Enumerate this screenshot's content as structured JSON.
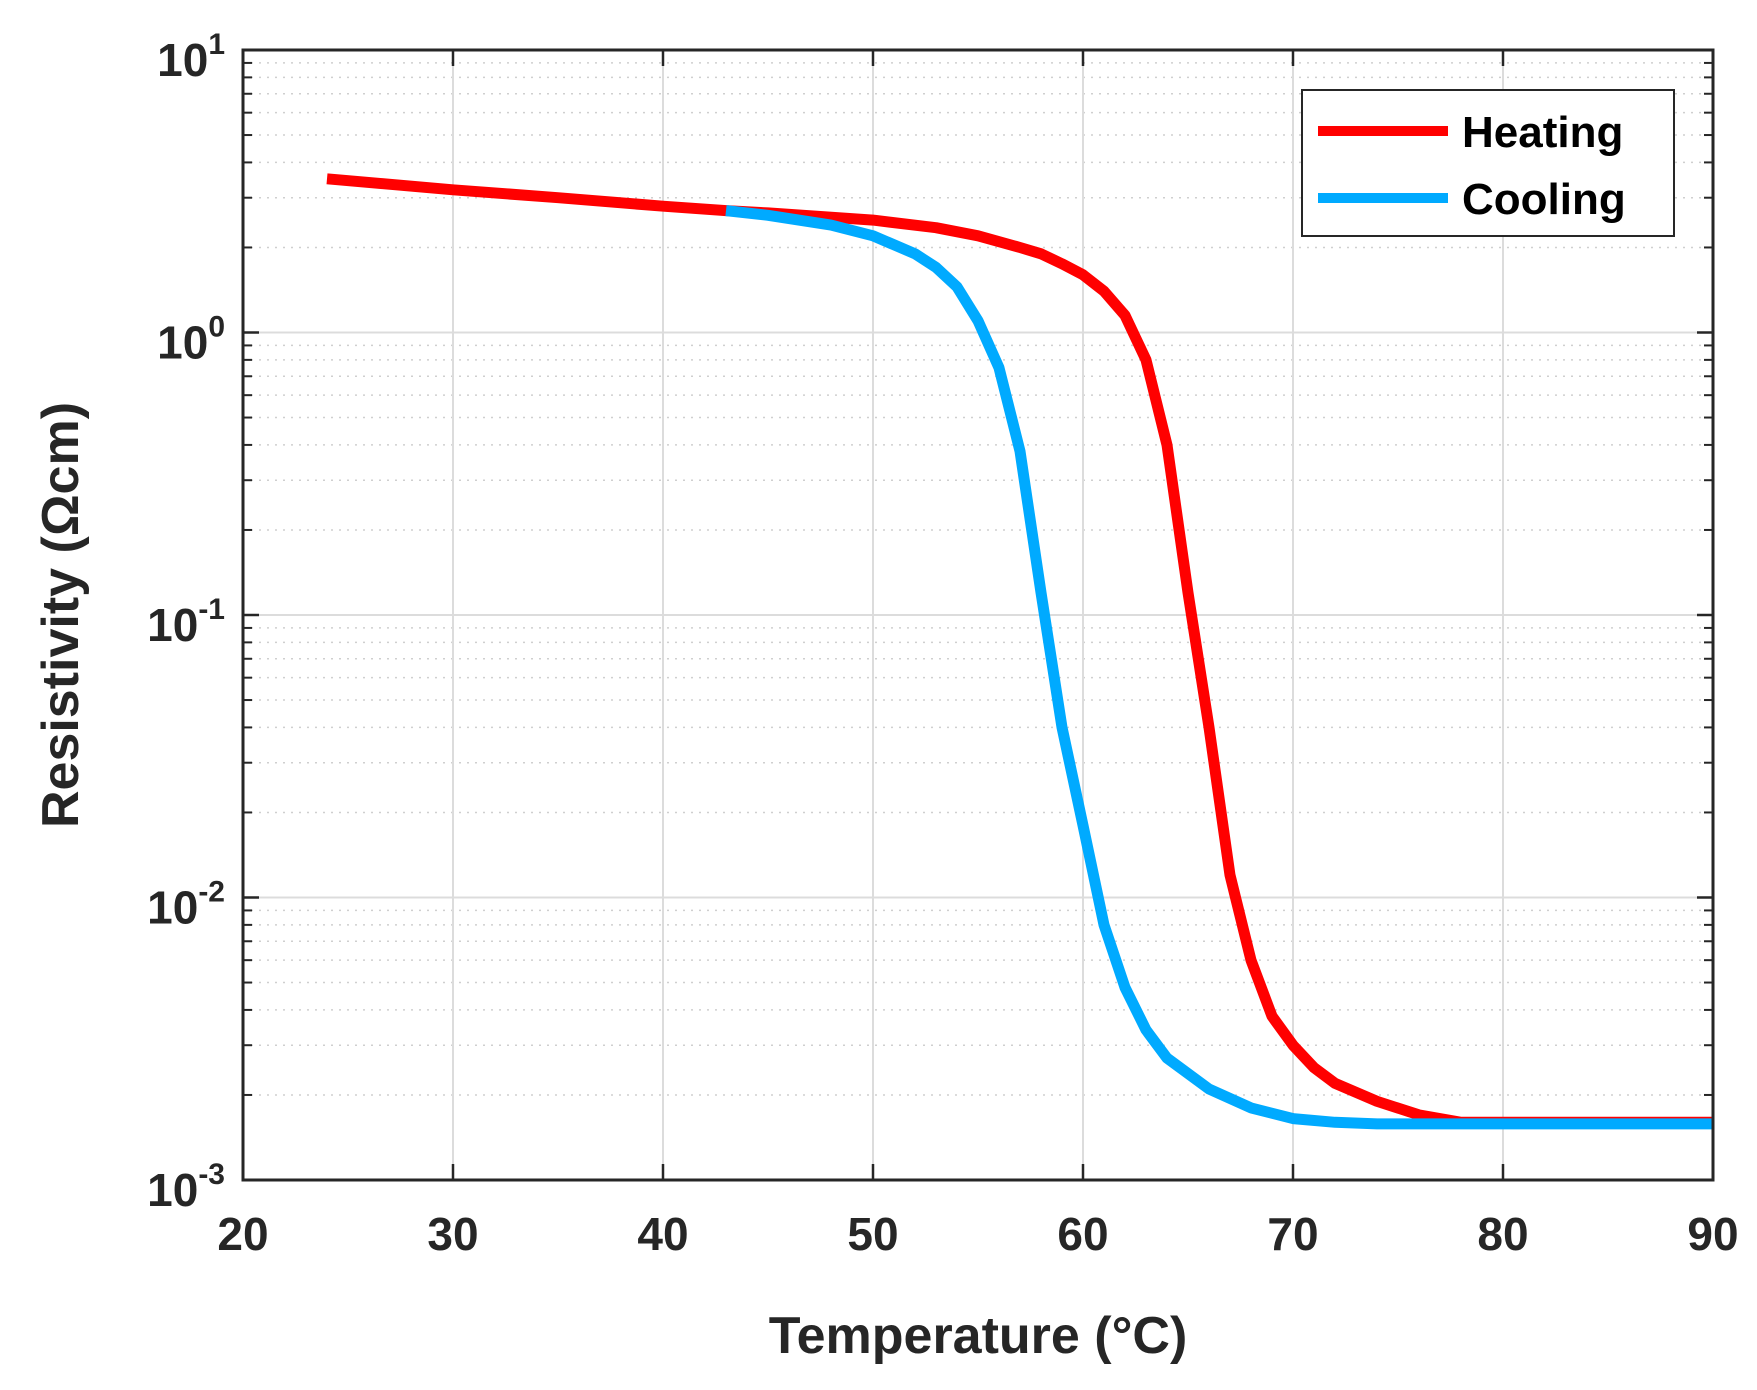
{
  "chart_data": {
    "type": "line",
    "xlabel": "Temperature (°C)",
    "ylabel": "Resistivity (Ωcm)",
    "xlim": [
      20,
      90
    ],
    "ylim": [
      0.001,
      10
    ],
    "yscale": "log",
    "grid": true,
    "x_ticks": [
      "20",
      "30",
      "40",
      "50",
      "60",
      "70",
      "80",
      "90"
    ],
    "y_ticks": [
      {
        "base": "10",
        "exp": "-3"
      },
      {
        "base": "10",
        "exp": "-2"
      },
      {
        "base": "10",
        "exp": "-1"
      },
      {
        "base": "10",
        "exp": "0"
      },
      {
        "base": "10",
        "exp": "1"
      }
    ],
    "legend_position": "top-right",
    "series": [
      {
        "name": "Heating",
        "color": "#ff0000",
        "x": [
          24,
          30,
          35,
          40,
          43,
          45,
          50,
          53,
          55,
          57,
          58,
          59,
          60,
          61,
          62,
          63,
          64,
          65,
          66,
          67,
          68,
          69,
          70,
          71,
          72,
          74,
          76,
          78,
          80,
          85,
          90
        ],
        "y": [
          3.5,
          3.2,
          3.0,
          2.8,
          2.7,
          2.65,
          2.5,
          2.35,
          2.2,
          2.0,
          1.9,
          1.75,
          1.6,
          1.4,
          1.15,
          0.8,
          0.4,
          0.12,
          0.04,
          0.012,
          0.006,
          0.0038,
          0.003,
          0.0025,
          0.0022,
          0.0019,
          0.0017,
          0.0016,
          0.0016,
          0.0016,
          0.0016
        ]
      },
      {
        "name": "Cooling",
        "color": "#00aaff",
        "x": [
          43,
          45,
          48,
          50,
          52,
          53,
          54,
          55,
          56,
          57,
          58,
          59,
          60,
          61,
          62,
          63,
          64,
          66,
          68,
          70,
          72,
          74,
          76,
          80,
          85,
          90
        ],
        "y": [
          2.7,
          2.6,
          2.4,
          2.2,
          1.9,
          1.7,
          1.45,
          1.1,
          0.75,
          0.38,
          0.12,
          0.04,
          0.018,
          0.008,
          0.0048,
          0.0034,
          0.0027,
          0.0021,
          0.0018,
          0.00165,
          0.0016,
          0.00158,
          0.00158,
          0.00158,
          0.00158,
          0.00158
        ]
      }
    ]
  }
}
